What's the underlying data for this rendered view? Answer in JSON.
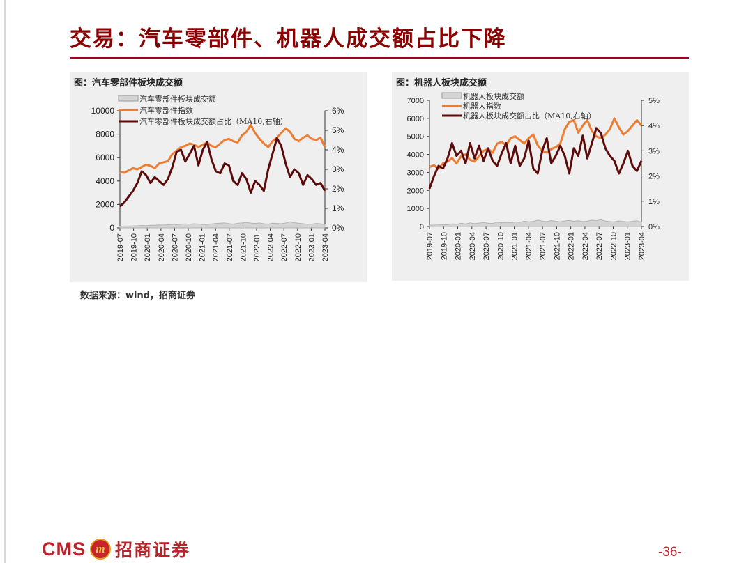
{
  "slide": {
    "title": "交易：汽车零部件、机器人成交额占比下降",
    "source": "数据来源：wind，招商证券",
    "page_number": "-36-",
    "logo": {
      "cms": "CMS",
      "mark": "m",
      "name": "招商证券"
    }
  },
  "colors": {
    "title": "#8b0000",
    "volume": "#b4b4b4",
    "index": "#ed7d31",
    "share": "#5c0a0a",
    "panel_bg": "#efefef"
  },
  "chart_data": [
    {
      "type": "line",
      "caption": "图：汽车零部件板块成交额",
      "x_ticks": [
        "2019-07",
        "2019-10",
        "2020-01",
        "2020-04",
        "2020-07",
        "2020-10",
        "2021-01",
        "2021-04",
        "2021-07",
        "2021-10",
        "2022-01",
        "2022-04",
        "2022-07",
        "2022-10",
        "2023-01",
        "2023-04"
      ],
      "y_left": {
        "min": 0,
        "max": 10000,
        "ticks": [
          0,
          2000,
          4000,
          6000,
          8000,
          10000
        ]
      },
      "y_right": {
        "min": 0,
        "max": 6,
        "ticks": [
          "0%",
          "1%",
          "2%",
          "3%",
          "4%",
          "5%",
          "6%"
        ]
      },
      "legend": [
        "汽车零部件板块成交额",
        "汽车零部件指数",
        "汽车零部件板块成交额占比（MA10,右轴）"
      ],
      "series": [
        {
          "name": "汽车零部件板块成交额",
          "axis": "left",
          "style": "area",
          "values": [
            140,
            160,
            150,
            170,
            180,
            210,
            190,
            230,
            220,
            250,
            240,
            270,
            300,
            280,
            320,
            340,
            310,
            360,
            330,
            300,
            290,
            340,
            380,
            400,
            420,
            360,
            330,
            390,
            420,
            460,
            410,
            380,
            420,
            350,
            330,
            400,
            380,
            360,
            410,
            520,
            440,
            390,
            360,
            310,
            330,
            380,
            350,
            290
          ]
        },
        {
          "name": "汽车零部件指数",
          "axis": "left",
          "style": "line",
          "values": [
            4800,
            4700,
            4900,
            5100,
            5000,
            5200,
            5400,
            5300,
            5100,
            5500,
            5600,
            5700,
            6300,
            6600,
            6900,
            7000,
            7200,
            7100,
            6900,
            7100,
            7300,
            7000,
            6900,
            7200,
            7500,
            7600,
            7400,
            7300,
            7900,
            8200,
            8800,
            8100,
            7600,
            7200,
            6900,
            7400,
            7700,
            8100,
            8500,
            8200,
            7600,
            7400,
            7700,
            7900,
            7600,
            7500,
            7700,
            6900
          ]
        },
        {
          "name": "汽车零部件板块成交额占比（MA10,右轴）",
          "axis": "right",
          "style": "line",
          "values": [
            1.1,
            1.3,
            1.6,
            1.9,
            2.3,
            2.9,
            2.7,
            2.3,
            2.6,
            2.4,
            2.2,
            2.5,
            3.1,
            3.9,
            4.0,
            3.4,
            3.8,
            4.2,
            3.2,
            4.0,
            4.4,
            3.5,
            2.9,
            2.8,
            3.3,
            3.2,
            2.4,
            2.2,
            2.8,
            2.5,
            1.8,
            2.4,
            2.2,
            1.9,
            3.0,
            3.8,
            4.6,
            4.2,
            3.3,
            2.6,
            3.0,
            2.8,
            2.2,
            2.7,
            2.5,
            2.2,
            2.3,
            1.9
          ]
        }
      ]
    },
    {
      "type": "line",
      "caption": "图：机器人板块成交额",
      "x_ticks": [
        "2019-07",
        "2019-10",
        "2020-01",
        "2020-04",
        "2020-07",
        "2020-10",
        "2021-01",
        "2021-04",
        "2021-07",
        "2021-10",
        "2022-01",
        "2022-04",
        "2022-07",
        "2022-10",
        "2023-01",
        "2023-04"
      ],
      "y_left": {
        "min": 0,
        "max": 7000,
        "ticks": [
          0,
          1000,
          2000,
          3000,
          4000,
          5000,
          6000,
          7000
        ]
      },
      "y_right": {
        "min": 0,
        "max": 5,
        "ticks": [
          "0%",
          "1%",
          "2%",
          "3%",
          "4%",
          "5%"
        ]
      },
      "legend": [
        "机器人板块成交额",
        "机器人指数",
        "机器人板块成交额占比（MA10,右轴）"
      ],
      "series": [
        {
          "name": "机器人板块成交额",
          "axis": "left",
          "style": "area",
          "values": [
            60,
            80,
            90,
            110,
            100,
            150,
            120,
            180,
            140,
            200,
            160,
            190,
            220,
            180,
            170,
            240,
            200,
            230,
            210,
            250,
            230,
            300,
            260,
            280,
            350,
            300,
            270,
            330,
            290,
            260,
            310,
            340,
            290,
            320,
            270,
            300,
            350,
            320,
            380,
            300,
            270,
            260,
            310,
            280,
            250,
            290,
            320,
            240
          ]
        },
        {
          "name": "机器人指数",
          "axis": "left",
          "style": "line",
          "values": [
            3300,
            3400,
            3200,
            3500,
            3600,
            3800,
            3500,
            3900,
            4000,
            3700,
            3600,
            3900,
            4200,
            4300,
            4100,
            4600,
            4700,
            4500,
            4900,
            5000,
            4800,
            4600,
            4900,
            5100,
            4500,
            4200,
            4100,
            4300,
            4400,
            4600,
            5400,
            5800,
            5900,
            5200,
            5600,
            5900,
            5300,
            5000,
            4900,
            5100,
            5400,
            6000,
            5500,
            5100,
            5300,
            5600,
            5900,
            5600
          ]
        },
        {
          "name": "机器人板块成交额占比（MA10,右轴）",
          "axis": "right",
          "style": "line",
          "values": [
            1.5,
            2.0,
            2.4,
            2.3,
            2.7,
            3.3,
            2.8,
            3.0,
            2.5,
            3.3,
            2.7,
            3.2,
            2.6,
            3.1,
            2.6,
            2.4,
            2.9,
            3.3,
            2.5,
            3.2,
            2.4,
            2.7,
            3.4,
            2.3,
            2.1,
            3.0,
            3.5,
            2.5,
            2.8,
            3.2,
            2.8,
            2.1,
            3.1,
            2.8,
            3.6,
            2.7,
            3.3,
            3.9,
            3.7,
            3.1,
            2.8,
            2.6,
            2.1,
            2.5,
            3.0,
            2.4,
            2.2,
            2.6
          ]
        }
      ]
    }
  ]
}
